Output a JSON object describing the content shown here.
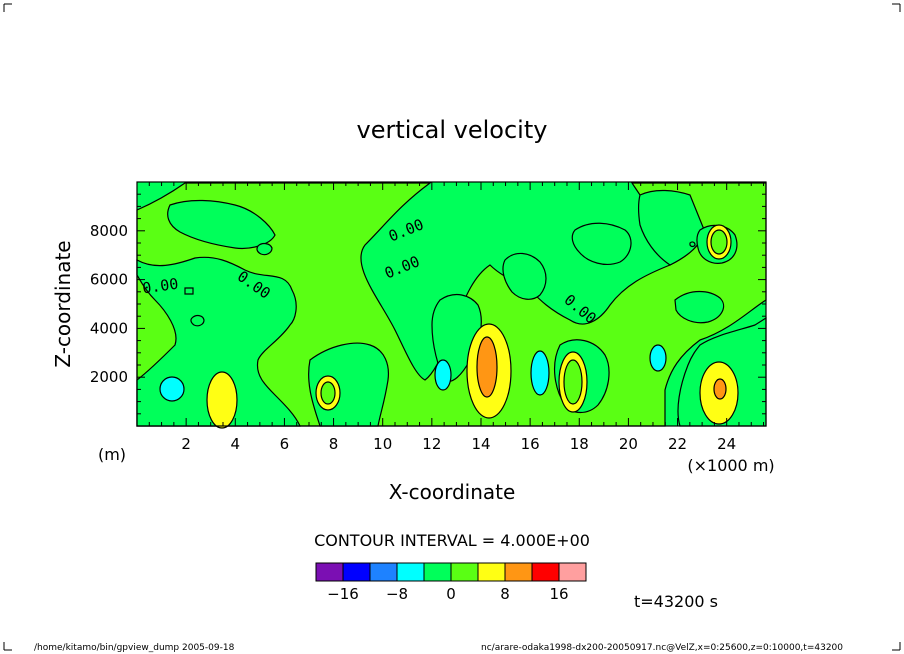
{
  "chart_data": {
    "type": "heatmap",
    "title": "vertical velocity",
    "xlabel": "X-coordinate",
    "ylabel": "Z-coordinate",
    "x_unit": "(×1000 m)",
    "y_unit": "(m)",
    "xlim": [
      0,
      25.6
    ],
    "ylim": [
      0,
      10000
    ],
    "x_ticks": [
      2,
      4,
      6,
      8,
      10,
      12,
      14,
      16,
      18,
      20,
      22,
      24
    ],
    "y_ticks": [
      2000,
      4000,
      6000,
      8000
    ],
    "contour_interval_text": "CONTOUR INTERVAL = 4.000E+00",
    "contour_interval": 4,
    "contour_labels": [
      "0.00",
      "0.00",
      "0.00",
      "0.00",
      "0.00"
    ],
    "colorbar": {
      "levels": [
        -20,
        -16,
        -12,
        -8,
        -4,
        0,
        4,
        8,
        12,
        16,
        20
      ],
      "colors": [
        "#7b0fb3",
        "#0000ff",
        "#1e82ff",
        "#00ffff",
        "#00ff5a",
        "#5aff14",
        "#ffff14",
        "#ff9614",
        "#ff0000",
        "#ff9f9f"
      ],
      "tick_labels": [
        "−16",
        "−8",
        "0",
        "8",
        "16"
      ]
    },
    "time_label": "t=43200 s",
    "footer_left": "/home/kitamo/bin/gpview_dump  2005-09-18",
    "footer_right": "nc/arare-odaka1998-dx200-20050917.nc@VelZ,x=0:25600,z=0:10000,t=43200"
  }
}
